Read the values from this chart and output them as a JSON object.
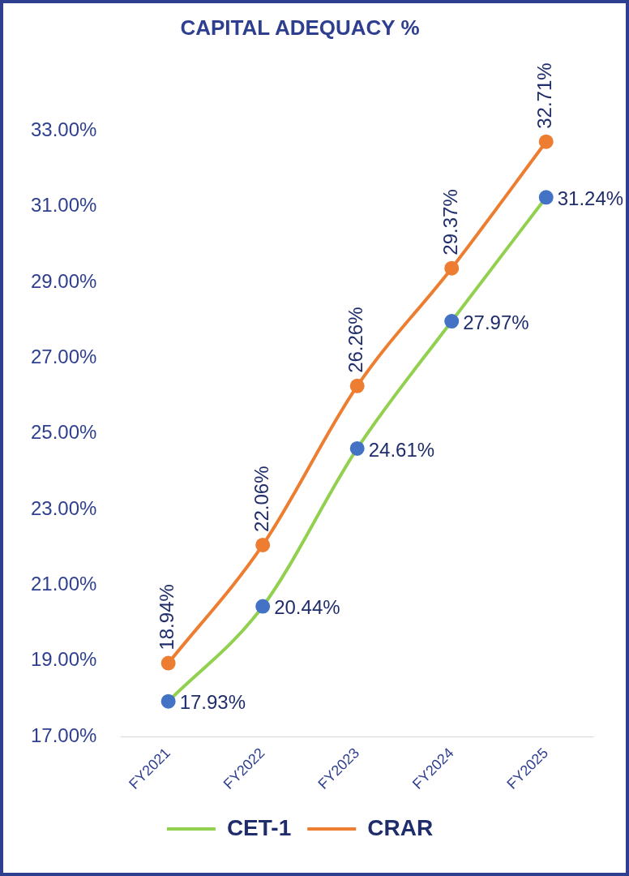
{
  "chart_data": {
    "type": "line",
    "title": "CAPITAL ADEQUACY %",
    "categories": [
      "FY2021",
      "FY2022",
      "FY2023",
      "FY2024",
      "FY2025"
    ],
    "series": [
      {
        "name": "CET-1",
        "color": "#92d050",
        "values": [
          17.93,
          20.44,
          24.61,
          27.97,
          31.24
        ],
        "value_labels": [
          "17.93%",
          "20.44%",
          "24.61%",
          "27.97%",
          "31.24%"
        ]
      },
      {
        "name": "CRAR",
        "color": "#ed7d31",
        "values": [
          18.94,
          22.06,
          26.26,
          29.37,
          32.71
        ],
        "value_labels": [
          "18.94%",
          "22.06%",
          "26.26%",
          "29.37%",
          "32.71%"
        ]
      }
    ],
    "ylim": [
      17,
      33
    ],
    "yticks": [
      {
        "value": 17,
        "label": "17.00%"
      },
      {
        "value": 19,
        "label": "19.00%"
      },
      {
        "value": 21,
        "label": "21.00%"
      },
      {
        "value": 23,
        "label": "23.00%"
      },
      {
        "value": 25,
        "label": "25.00%"
      },
      {
        "value": 27,
        "label": "27.00%"
      },
      {
        "value": 29,
        "label": "29.00%"
      },
      {
        "value": 31,
        "label": "31.00%"
      },
      {
        "value": 33,
        "label": "33.00%"
      }
    ],
    "grid": false,
    "legend": "bottom",
    "marker": "circle",
    "line_style": "solid"
  }
}
